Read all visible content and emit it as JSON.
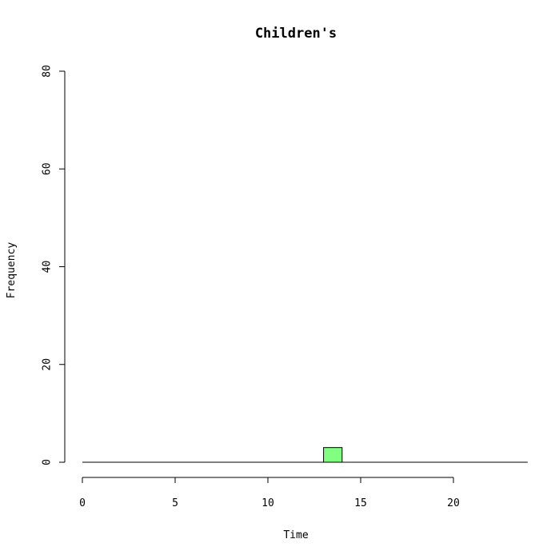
{
  "chart_data": {
    "type": "bar",
    "title": "Children's",
    "xlabel": "Time",
    "ylabel": "Frequency",
    "xlim": [
      0,
      24
    ],
    "ylim": [
      0,
      80
    ],
    "x_ticks": [
      0,
      5,
      10,
      15,
      20
    ],
    "y_ticks": [
      0,
      20,
      40,
      60,
      80
    ],
    "bar_width": 1,
    "grid": false,
    "legend": "none",
    "bar_color": "#80ff80",
    "bars": [
      {
        "x": 13,
        "value": 3
      }
    ]
  }
}
